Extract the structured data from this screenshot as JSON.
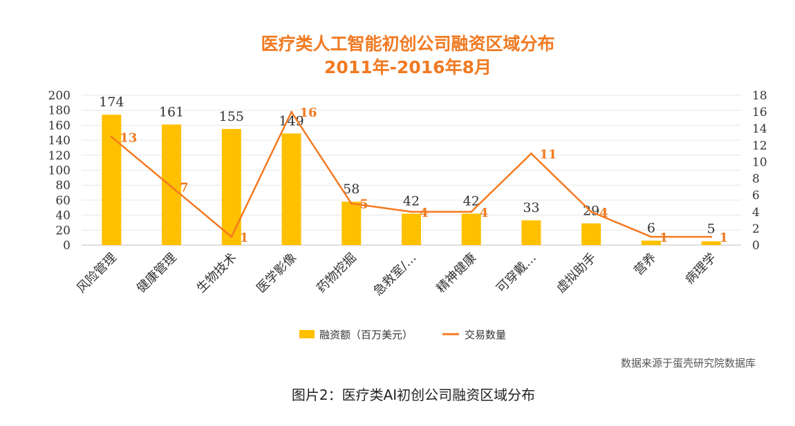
{
  "chart_data": {
    "type": "bar",
    "title": "医疗类人工智能初创公司融资区域分布",
    "subtitle": "2011年-2016年8月",
    "categories": [
      "风险管理",
      "健康管理",
      "生物技术",
      "医学影像",
      "药物挖掘",
      "急救室/…",
      "精神健康",
      "可穿戴…",
      "虚拟助手",
      "营养",
      "病理学"
    ],
    "series": [
      {
        "name": "融资额（百万美元）",
        "type": "bar",
        "axis": "left",
        "color": "#ffc000",
        "values": [
          174,
          161,
          155,
          149,
          58,
          42,
          42,
          33,
          29,
          6,
          5
        ]
      },
      {
        "name": "交易数量",
        "type": "line",
        "axis": "right",
        "color": "#f47920",
        "values": [
          13,
          7,
          1,
          16,
          5,
          4,
          4,
          11,
          4,
          1,
          1
        ]
      }
    ],
    "y_left": {
      "min": 0,
      "max": 200,
      "ticks": [
        0,
        20,
        40,
        60,
        80,
        100,
        120,
        140,
        160,
        180,
        200
      ]
    },
    "y_right": {
      "min": 0,
      "max": 18,
      "ticks": [
        0,
        2,
        4,
        6,
        8,
        10,
        12,
        14,
        16,
        18
      ]
    },
    "grid": true,
    "legend_position": "bottom"
  },
  "source_note": "数据来源于蛋壳研究院数据库",
  "caption": "图片2：医疗类AI初创公司融资区域分布"
}
